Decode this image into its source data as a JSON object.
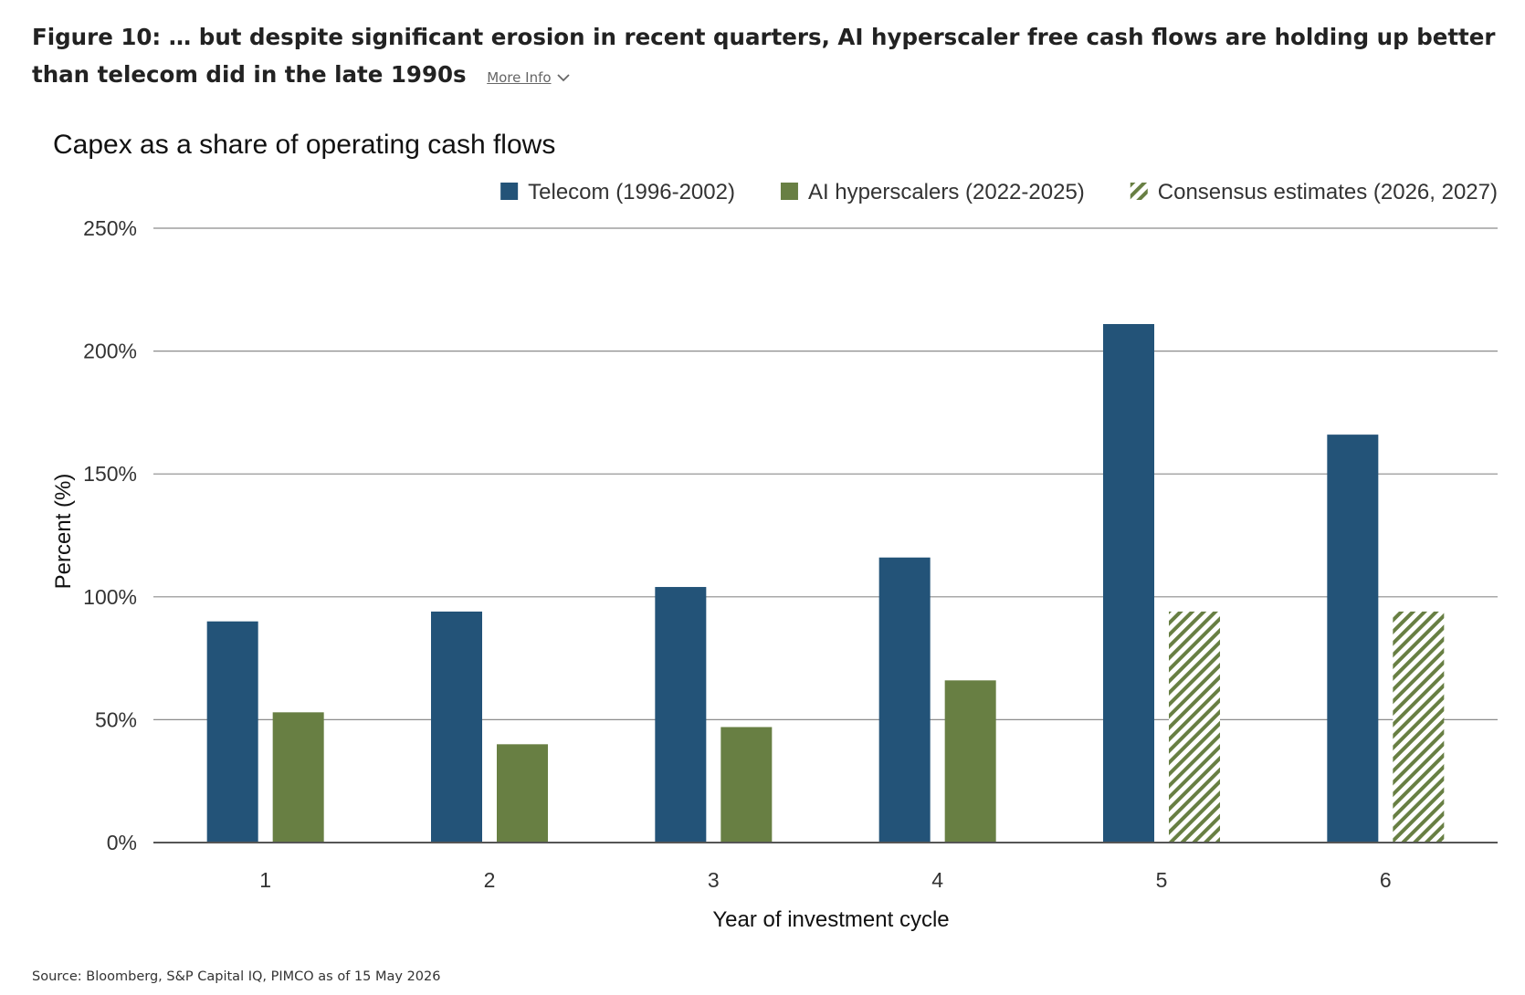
{
  "figure": {
    "heading": "Figure 10: … but despite significant erosion in recent quarters, AI hyperscaler free cash flows are holding up better than telecom did in the late 1990s",
    "more_info_label": "More Info",
    "more_info_icon": "chevron-down-icon"
  },
  "source": "Source: Bloomberg, S&P Capital IQ, PIMCO as of 15 May 2026",
  "chart_data": {
    "type": "bar",
    "title": "Capex as a share of operating cash flows",
    "xlabel": "Year of investment cycle",
    "ylabel": "Percent (%)",
    "categories": [
      "1",
      "2",
      "3",
      "4",
      "5",
      "6"
    ],
    "ylim": [
      0,
      250
    ],
    "yticks": [
      0,
      50,
      100,
      150,
      200,
      250
    ],
    "ytick_labels": [
      "0%",
      "50%",
      "100%",
      "150%",
      "200%",
      "250%"
    ],
    "grid": true,
    "legend_position": "top-right",
    "series": [
      {
        "name": "Telecom (1996-2002)",
        "color": "#235378",
        "values": [
          90,
          94,
          104,
          116,
          211,
          166
        ]
      },
      {
        "name": "AI hyperscalers (2022-2025)",
        "color": "#687f43",
        "values": [
          53,
          40,
          47,
          66,
          null,
          null
        ]
      },
      {
        "name": "Consensus estimates (2026, 2027)",
        "color": "#687f43",
        "pattern": "hatched",
        "values": [
          null,
          null,
          null,
          null,
          94,
          94
        ]
      }
    ]
  }
}
